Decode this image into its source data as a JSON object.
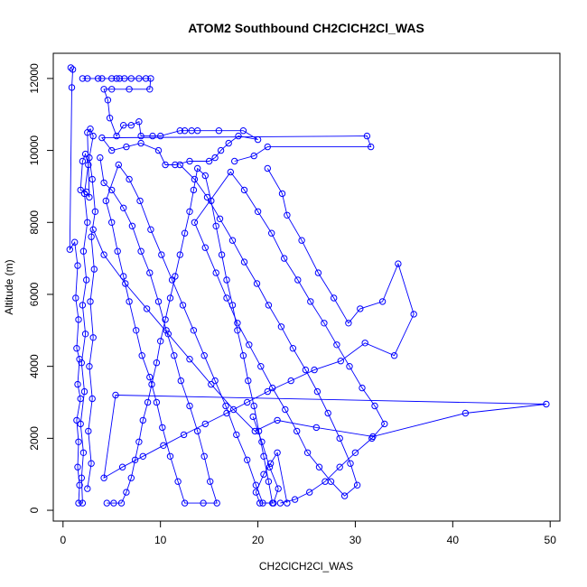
{
  "chart_data": {
    "type": "scatter",
    "title": "ATOM2 Southbound CH2ClCH2Cl_WAS",
    "xlabel": "CH2ClCH2Cl_WAS",
    "ylabel": "Altitude (m)",
    "xlim": [
      -1,
      51
    ],
    "ylim": [
      -300,
      12700
    ],
    "xticks": [
      0,
      10,
      20,
      30,
      40,
      50
    ],
    "yticks": [
      0,
      2000,
      4000,
      6000,
      8000,
      10000,
      12000
    ],
    "grid": false,
    "color": "#0000ff",
    "series": [
      {
        "points": [
          [
            0.8,
            12300
          ],
          [
            1.0,
            12250
          ],
          [
            0.9,
            11750
          ],
          [
            0.7,
            7250
          ],
          [
            1.2,
            7450
          ],
          [
            1.5,
            6800
          ],
          [
            1.3,
            5900
          ],
          [
            1.6,
            5300
          ],
          [
            1.4,
            4500
          ],
          [
            1.7,
            4200
          ],
          [
            1.5,
            3500
          ],
          [
            1.8,
            3100
          ],
          [
            1.4,
            2500
          ],
          [
            1.6,
            1900
          ],
          [
            1.5,
            1200
          ],
          [
            1.7,
            700
          ],
          [
            1.6,
            200
          ],
          [
            2.0,
            200
          ],
          [
            1.9,
            900
          ],
          [
            2.1,
            1600
          ],
          [
            1.8,
            2400
          ],
          [
            2.2,
            3300
          ],
          [
            1.9,
            4100
          ],
          [
            2.3,
            4900
          ],
          [
            2.0,
            5700
          ],
          [
            2.4,
            6400
          ],
          [
            2.1,
            7200
          ],
          [
            2.5,
            8000
          ],
          [
            2.2,
            8800
          ],
          [
            2.6,
            9600
          ],
          [
            2.3,
            9900
          ],
          [
            2.0,
            9700
          ],
          [
            1.8,
            8900
          ],
          [
            2.4,
            8850
          ],
          [
            2.7,
            8700
          ],
          [
            2.5,
            10500
          ],
          [
            2.8,
            10600
          ],
          [
            3.1,
            10400
          ],
          [
            2.7,
            9800
          ],
          [
            3.0,
            9200
          ],
          [
            3.3,
            8300
          ],
          [
            2.9,
            7600
          ],
          [
            3.2,
            6700
          ],
          [
            2.8,
            5800
          ],
          [
            3.1,
            4800
          ],
          [
            2.7,
            4000
          ],
          [
            3.0,
            3100
          ],
          [
            2.6,
            2200
          ],
          [
            2.9,
            1300
          ],
          [
            2.5,
            600
          ]
        ]
      },
      {
        "points": [
          [
            2.0,
            12000
          ],
          [
            2.5,
            12000
          ],
          [
            3.6,
            12000
          ],
          [
            4.0,
            12000
          ],
          [
            5.0,
            12000
          ],
          [
            5.5,
            12000
          ],
          [
            5.8,
            12000
          ],
          [
            6.3,
            12000
          ],
          [
            7.0,
            12000
          ],
          [
            7.8,
            12000
          ],
          [
            8.5,
            12000
          ],
          [
            9.0,
            12000
          ],
          [
            8.9,
            11700
          ],
          [
            6.8,
            11700
          ],
          [
            5.0,
            11700
          ],
          [
            4.2,
            11700
          ],
          [
            4.6,
            11400
          ],
          [
            4.8,
            10900
          ],
          [
            5.5,
            10400
          ],
          [
            6.2,
            10700
          ],
          [
            7.0,
            10700
          ],
          [
            7.8,
            10800
          ],
          [
            8.0,
            10400
          ],
          [
            9.2,
            10400
          ],
          [
            10.0,
            10400
          ],
          [
            12.0,
            10550
          ],
          [
            12.5,
            10550
          ],
          [
            13.2,
            10550
          ],
          [
            13.8,
            10550
          ],
          [
            16.0,
            10550
          ],
          [
            18.5,
            10550
          ],
          [
            20.0,
            10300
          ],
          [
            18.0,
            10400
          ],
          [
            17.0,
            10200
          ],
          [
            16.2,
            10000
          ],
          [
            15.6,
            9800
          ],
          [
            15.0,
            9700
          ],
          [
            13.0,
            9700
          ],
          [
            11.5,
            9600
          ],
          [
            10.5,
            9600
          ],
          [
            9.8,
            10000
          ],
          [
            8.0,
            10200
          ],
          [
            6.5,
            10100
          ],
          [
            5.0,
            10000
          ],
          [
            4.0,
            10350
          ],
          [
            31.2,
            10400
          ],
          [
            31.6,
            10100
          ],
          [
            21.0,
            10100
          ],
          [
            19.6,
            9850
          ],
          [
            17.6,
            9700
          ]
        ]
      },
      {
        "points": [
          [
            3.8,
            9800
          ],
          [
            4.2,
            9100
          ],
          [
            5.0,
            8900
          ],
          [
            6.2,
            8400
          ],
          [
            7.1,
            7900
          ],
          [
            8.0,
            7200
          ],
          [
            8.9,
            6600
          ],
          [
            9.8,
            5800
          ],
          [
            10.6,
            5000
          ],
          [
            11.4,
            4300
          ],
          [
            12.1,
            3600
          ],
          [
            13.0,
            2900
          ],
          [
            13.8,
            2200
          ],
          [
            14.5,
            1500
          ],
          [
            15.1,
            800
          ],
          [
            15.8,
            200
          ],
          [
            14.4,
            200
          ],
          [
            12.5,
            200
          ],
          [
            11.8,
            800
          ],
          [
            11.0,
            1500
          ],
          [
            10.2,
            2300
          ],
          [
            9.6,
            3000
          ],
          [
            8.9,
            3700
          ],
          [
            8.1,
            4300
          ],
          [
            7.5,
            5000
          ],
          [
            6.8,
            5800
          ],
          [
            6.2,
            6500
          ],
          [
            5.6,
            7200
          ],
          [
            5.0,
            8000
          ],
          [
            4.4,
            8600
          ],
          [
            5.7,
            9600
          ],
          [
            6.8,
            9200
          ],
          [
            7.9,
            8600
          ],
          [
            9.0,
            7800
          ],
          [
            10.1,
            7100
          ],
          [
            11.2,
            6400
          ],
          [
            12.3,
            5700
          ],
          [
            13.4,
            5000
          ],
          [
            14.5,
            4300
          ],
          [
            15.6,
            3600
          ],
          [
            16.7,
            2900
          ],
          [
            17.8,
            2100
          ],
          [
            18.9,
            1400
          ],
          [
            19.8,
            700
          ],
          [
            20.5,
            200
          ],
          [
            21.6,
            200
          ],
          [
            22.1,
            600
          ],
          [
            21.2,
            1200
          ],
          [
            20.4,
            1900
          ],
          [
            19.5,
            2600
          ]
        ]
      },
      {
        "points": [
          [
            12.0,
            9600
          ],
          [
            13.5,
            9200
          ],
          [
            14.8,
            8700
          ],
          [
            16.1,
            8100
          ],
          [
            17.4,
            7500
          ],
          [
            18.6,
            6900
          ],
          [
            19.9,
            6300
          ],
          [
            21.1,
            5700
          ],
          [
            22.4,
            5100
          ],
          [
            23.6,
            4500
          ],
          [
            24.9,
            3900
          ],
          [
            26.1,
            3300
          ],
          [
            27.2,
            2700
          ],
          [
            28.4,
            2000
          ],
          [
            29.5,
            1300
          ],
          [
            30.2,
            700
          ],
          [
            28.9,
            400
          ],
          [
            27.5,
            800
          ],
          [
            26.3,
            1200
          ],
          [
            25.1,
            1600
          ],
          [
            24.0,
            2200
          ],
          [
            22.8,
            2800
          ],
          [
            21.5,
            3400
          ],
          [
            20.3,
            4000
          ],
          [
            19.1,
            4600
          ],
          [
            17.9,
            5200
          ],
          [
            16.8,
            5900
          ],
          [
            15.7,
            6600
          ],
          [
            14.6,
            7300
          ],
          [
            13.5,
            8000
          ],
          [
            17.2,
            9400
          ],
          [
            18.6,
            8900
          ],
          [
            20.0,
            8300
          ],
          [
            21.4,
            7700
          ],
          [
            22.7,
            7000
          ],
          [
            24.1,
            6400
          ],
          [
            25.4,
            5800
          ],
          [
            26.8,
            5200
          ],
          [
            28.1,
            4600
          ],
          [
            29.4,
            4000
          ],
          [
            30.7,
            3400
          ],
          [
            32.0,
            2900
          ],
          [
            33.0,
            2400
          ],
          [
            31.7,
            2000
          ],
          [
            30.0,
            1600
          ],
          [
            28.4,
            1200
          ],
          [
            26.9,
            800
          ],
          [
            25.3,
            500
          ],
          [
            23.8,
            300
          ],
          [
            22.3,
            200
          ]
        ]
      },
      {
        "points": [
          [
            21.0,
            9500
          ],
          [
            22.5,
            8800
          ],
          [
            23.0,
            8200
          ],
          [
            24.5,
            7500
          ],
          [
            26.2,
            6600
          ],
          [
            27.8,
            5900
          ],
          [
            29.3,
            5200
          ],
          [
            30.5,
            5600
          ],
          [
            32.8,
            5800
          ],
          [
            34.4,
            6850
          ],
          [
            36.0,
            5450
          ],
          [
            34.0,
            4300
          ],
          [
            31.0,
            4650
          ],
          [
            28.5,
            4150
          ],
          [
            25.8,
            3900
          ],
          [
            23.4,
            3600
          ],
          [
            21.0,
            3300
          ],
          [
            18.9,
            3000
          ],
          [
            16.8,
            2700
          ],
          [
            14.6,
            2400
          ],
          [
            12.4,
            2100
          ],
          [
            10.3,
            1800
          ],
          [
            8.2,
            1500
          ],
          [
            6.1,
            1200
          ],
          [
            4.2,
            900
          ],
          [
            5.4,
            3200
          ],
          [
            49.6,
            2950
          ],
          [
            41.3,
            2700
          ],
          [
            31.8,
            2050
          ],
          [
            26.0,
            2300
          ],
          [
            22.0,
            2500
          ],
          [
            19.7,
            2200
          ],
          [
            17.5,
            2800
          ],
          [
            15.2,
            3500
          ],
          [
            13.0,
            4200
          ],
          [
            10.8,
            4900
          ],
          [
            8.6,
            5600
          ],
          [
            6.4,
            6300
          ],
          [
            4.2,
            7100
          ],
          [
            3.1,
            7800
          ]
        ]
      },
      {
        "points": [
          [
            4.5,
            200
          ],
          [
            5.2,
            200
          ],
          [
            6.0,
            200
          ],
          [
            6.5,
            500
          ],
          [
            7.0,
            900
          ],
          [
            7.4,
            1400
          ],
          [
            7.8,
            1900
          ],
          [
            8.2,
            2500
          ],
          [
            8.7,
            3000
          ],
          [
            9.1,
            3500
          ],
          [
            9.6,
            4100
          ],
          [
            10.0,
            4700
          ],
          [
            10.5,
            5300
          ],
          [
            11.0,
            5900
          ],
          [
            11.5,
            6500
          ],
          [
            12.0,
            7100
          ],
          [
            12.5,
            7700
          ],
          [
            13.0,
            8300
          ],
          [
            13.4,
            8900
          ],
          [
            13.8,
            9500
          ],
          [
            14.6,
            9300
          ],
          [
            15.2,
            8600
          ],
          [
            15.7,
            7900
          ],
          [
            16.3,
            7100
          ],
          [
            16.8,
            6400
          ],
          [
            17.4,
            5700
          ],
          [
            17.9,
            5000
          ],
          [
            18.5,
            4300
          ],
          [
            19.0,
            3600
          ],
          [
            19.6,
            2900
          ],
          [
            20.1,
            2200
          ],
          [
            20.6,
            1500
          ],
          [
            21.1,
            800
          ],
          [
            21.5,
            200
          ],
          [
            20.2,
            200
          ],
          [
            19.8,
            500
          ],
          [
            20.6,
            1000
          ],
          [
            21.3,
            1300
          ],
          [
            22.0,
            1600
          ],
          [
            23.0,
            200
          ]
        ]
      }
    ]
  }
}
